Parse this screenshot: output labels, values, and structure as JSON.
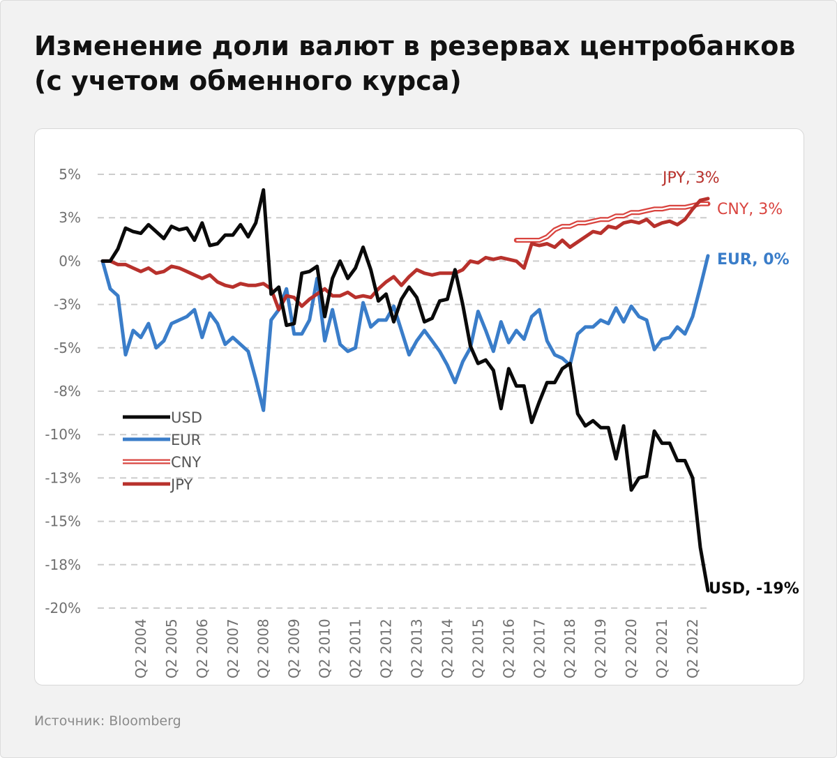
{
  "title_line1": "Изменение доли валют в резервах центробанков",
  "title_line2": "(с учетом обменного курса)",
  "source": "Источник: Bloomberg",
  "colors": {
    "usd": "#0a0a0a",
    "eur": "#3a7dc9",
    "cny": "#d9443f",
    "jpy": "#b8312c",
    "grid": "#cccccc",
    "axis_text": "#707070"
  },
  "chart_data": {
    "type": "line",
    "xlabel": "",
    "ylabel": "",
    "ylim": [
      -20,
      5
    ],
    "y_tick_labels": [
      "5%",
      "3%",
      "0%",
      "-3%",
      "-5%",
      "-8%",
      "-10%",
      "-13%",
      "-15%",
      "-18%",
      "-20%"
    ],
    "x_tick_labels": [
      "Q2 2004",
      "Q2 2005",
      "Q2 2006",
      "Q2 2007",
      "Q2 2008",
      "Q2 2009",
      "Q2 2010",
      "Q2 2011",
      "Q2 2012",
      "Q2 2013",
      "Q2 2014",
      "Q2 2015",
      "Q2 2016",
      "Q2 2017",
      "Q2 2018",
      "Q2 2019",
      "Q2 2020",
      "Q2 2021",
      "Q2 2022"
    ],
    "grid": "horizontal dashed",
    "legend_position": "left-middle",
    "series": [
      {
        "name": "USD",
        "end_label": "USD, -19%",
        "points": [
          [
            2003.0,
            0.0
          ],
          [
            2003.25,
            0.0
          ],
          [
            2003.5,
            0.7
          ],
          [
            2003.75,
            1.9
          ],
          [
            2004.0,
            1.7
          ],
          [
            2004.25,
            1.6
          ],
          [
            2004.5,
            2.1
          ],
          [
            2004.75,
            1.7
          ],
          [
            2005.0,
            1.3
          ],
          [
            2005.25,
            2.0
          ],
          [
            2005.5,
            1.8
          ],
          [
            2005.75,
            1.9
          ],
          [
            2006.0,
            1.2
          ],
          [
            2006.25,
            2.2
          ],
          [
            2006.5,
            0.9
          ],
          [
            2006.75,
            1.0
          ],
          [
            2007.0,
            1.5
          ],
          [
            2007.25,
            1.5
          ],
          [
            2007.5,
            2.1
          ],
          [
            2007.75,
            1.4
          ],
          [
            2008.0,
            2.2
          ],
          [
            2008.25,
            4.1
          ],
          [
            2008.5,
            -1.9
          ],
          [
            2008.75,
            -1.5
          ],
          [
            2009.0,
            -3.7
          ],
          [
            2009.25,
            -3.6
          ],
          [
            2009.5,
            -0.7
          ],
          [
            2009.75,
            -0.6
          ],
          [
            2010.0,
            -0.3
          ],
          [
            2010.25,
            -3.2
          ],
          [
            2010.5,
            -1.0
          ],
          [
            2010.75,
            0.0
          ],
          [
            2011.0,
            -1.0
          ],
          [
            2011.25,
            -0.4
          ],
          [
            2011.5,
            0.8
          ],
          [
            2011.75,
            -0.5
          ],
          [
            2012.0,
            -2.3
          ],
          [
            2012.25,
            -1.9
          ],
          [
            2012.5,
            -3.5
          ],
          [
            2012.75,
            -2.2
          ],
          [
            2013.0,
            -1.5
          ],
          [
            2013.25,
            -2.1
          ],
          [
            2013.5,
            -3.5
          ],
          [
            2013.75,
            -3.3
          ],
          [
            2014.0,
            -2.3
          ],
          [
            2014.25,
            -2.2
          ],
          [
            2014.5,
            -0.5
          ],
          [
            2014.75,
            -2.5
          ],
          [
            2015.0,
            -4.9
          ],
          [
            2015.25,
            -5.9
          ],
          [
            2015.5,
            -5.7
          ],
          [
            2015.75,
            -6.3
          ],
          [
            2016.0,
            -8.5
          ],
          [
            2016.25,
            -6.2
          ],
          [
            2016.5,
            -7.2
          ],
          [
            2016.75,
            -7.2
          ],
          [
            2017.0,
            -9.3
          ],
          [
            2017.25,
            -8.1
          ],
          [
            2017.5,
            -7.0
          ],
          [
            2017.75,
            -7.0
          ],
          [
            2018.0,
            -6.2
          ],
          [
            2018.25,
            -5.9
          ],
          [
            2018.5,
            -8.8
          ],
          [
            2018.75,
            -9.5
          ],
          [
            2019.0,
            -9.2
          ],
          [
            2019.25,
            -9.6
          ],
          [
            2019.5,
            -9.6
          ],
          [
            2019.75,
            -11.4
          ],
          [
            2020.0,
            -9.5
          ],
          [
            2020.25,
            -13.2
          ],
          [
            2020.5,
            -12.5
          ],
          [
            2020.75,
            -12.4
          ],
          [
            2021.0,
            -9.8
          ],
          [
            2021.25,
            -10.5
          ],
          [
            2021.5,
            -10.5
          ],
          [
            2021.75,
            -11.5
          ],
          [
            2022.0,
            -11.5
          ],
          [
            2022.25,
            -12.5
          ],
          [
            2022.5,
            -16.5
          ],
          [
            2022.75,
            -19.0
          ]
        ]
      },
      {
        "name": "EUR",
        "end_label": "EUR, 0%",
        "points": [
          [
            2003.0,
            0.0
          ],
          [
            2003.25,
            -1.6
          ],
          [
            2003.5,
            -2.0
          ],
          [
            2003.75,
            -5.4
          ],
          [
            2004.0,
            -4.0
          ],
          [
            2004.25,
            -4.4
          ],
          [
            2004.5,
            -3.6
          ],
          [
            2004.75,
            -5.0
          ],
          [
            2005.0,
            -4.6
          ],
          [
            2005.25,
            -3.6
          ],
          [
            2005.5,
            -3.4
          ],
          [
            2005.75,
            -3.2
          ],
          [
            2006.0,
            -2.8
          ],
          [
            2006.25,
            -4.4
          ],
          [
            2006.5,
            -3.0
          ],
          [
            2006.75,
            -3.6
          ],
          [
            2007.0,
            -4.8
          ],
          [
            2007.25,
            -4.4
          ],
          [
            2007.5,
            -4.8
          ],
          [
            2007.75,
            -5.2
          ],
          [
            2008.0,
            -6.8
          ],
          [
            2008.25,
            -8.6
          ],
          [
            2008.5,
            -3.4
          ],
          [
            2008.75,
            -2.8
          ],
          [
            2009.0,
            -1.6
          ],
          [
            2009.25,
            -4.2
          ],
          [
            2009.5,
            -4.2
          ],
          [
            2009.75,
            -3.4
          ],
          [
            2010.0,
            -1.0
          ],
          [
            2010.25,
            -4.6
          ],
          [
            2010.5,
            -2.8
          ],
          [
            2010.75,
            -4.8
          ],
          [
            2011.0,
            -5.2
          ],
          [
            2011.25,
            -5.0
          ],
          [
            2011.5,
            -2.4
          ],
          [
            2011.75,
            -3.8
          ],
          [
            2012.0,
            -3.4
          ],
          [
            2012.25,
            -3.4
          ],
          [
            2012.5,
            -2.6
          ],
          [
            2012.75,
            -4.0
          ],
          [
            2013.0,
            -5.4
          ],
          [
            2013.25,
            -4.6
          ],
          [
            2013.5,
            -4.0
          ],
          [
            2013.75,
            -4.6
          ],
          [
            2014.0,
            -5.2
          ],
          [
            2014.25,
            -6.0
          ],
          [
            2014.5,
            -7.0
          ],
          [
            2014.75,
            -5.8
          ],
          [
            2015.0,
            -5.0
          ],
          [
            2015.25,
            -2.9
          ],
          [
            2015.5,
            -4.0
          ],
          [
            2015.75,
            -5.2
          ],
          [
            2016.0,
            -3.5
          ],
          [
            2016.25,
            -4.7
          ],
          [
            2016.5,
            -4.0
          ],
          [
            2016.75,
            -4.5
          ],
          [
            2017.0,
            -3.2
          ],
          [
            2017.25,
            -2.8
          ],
          [
            2017.5,
            -4.6
          ],
          [
            2017.75,
            -5.4
          ],
          [
            2018.0,
            -5.6
          ],
          [
            2018.25,
            -6.0
          ],
          [
            2018.5,
            -4.2
          ],
          [
            2018.75,
            -3.8
          ],
          [
            2019.0,
            -3.8
          ],
          [
            2019.25,
            -3.4
          ],
          [
            2019.5,
            -3.6
          ],
          [
            2019.75,
            -2.7
          ],
          [
            2020.0,
            -3.5
          ],
          [
            2020.25,
            -2.6
          ],
          [
            2020.5,
            -3.2
          ],
          [
            2020.75,
            -3.4
          ],
          [
            2021.0,
            -5.1
          ],
          [
            2021.25,
            -4.5
          ],
          [
            2021.5,
            -4.4
          ],
          [
            2021.75,
            -3.8
          ],
          [
            2022.0,
            -4.2
          ],
          [
            2022.25,
            -3.2
          ],
          [
            2022.5,
            -1.5
          ],
          [
            2022.75,
            0.3
          ]
        ]
      },
      {
        "name": "CNY",
        "end_label": "CNY, 3%",
        "points": [
          [
            2016.5,
            1.2
          ],
          [
            2016.75,
            1.2
          ],
          [
            2017.0,
            1.2
          ],
          [
            2017.25,
            1.2
          ],
          [
            2017.5,
            1.4
          ],
          [
            2017.75,
            1.8
          ],
          [
            2018.0,
            2.0
          ],
          [
            2018.25,
            2.0
          ],
          [
            2018.5,
            2.2
          ],
          [
            2018.75,
            2.2
          ],
          [
            2019.0,
            2.3
          ],
          [
            2019.25,
            2.4
          ],
          [
            2019.5,
            2.4
          ],
          [
            2019.75,
            2.6
          ],
          [
            2020.0,
            2.6
          ],
          [
            2020.25,
            2.8
          ],
          [
            2020.5,
            2.8
          ],
          [
            2020.75,
            2.9
          ],
          [
            2021.0,
            3.0
          ],
          [
            2021.25,
            3.0
          ],
          [
            2021.5,
            3.1
          ],
          [
            2021.75,
            3.1
          ],
          [
            2022.0,
            3.1
          ],
          [
            2022.25,
            3.2
          ],
          [
            2022.5,
            3.3
          ],
          [
            2022.75,
            3.3
          ]
        ]
      },
      {
        "name": "JPY",
        "end_label": "JPY, 3%",
        "points": [
          [
            2003.0,
            0.0
          ],
          [
            2003.25,
            0.0
          ],
          [
            2003.5,
            -0.2
          ],
          [
            2003.75,
            -0.2
          ],
          [
            2004.0,
            -0.4
          ],
          [
            2004.25,
            -0.6
          ],
          [
            2004.5,
            -0.4
          ],
          [
            2004.75,
            -0.7
          ],
          [
            2005.0,
            -0.6
          ],
          [
            2005.25,
            -0.3
          ],
          [
            2005.5,
            -0.4
          ],
          [
            2005.75,
            -0.6
          ],
          [
            2006.0,
            -0.8
          ],
          [
            2006.25,
            -1.0
          ],
          [
            2006.5,
            -0.8
          ],
          [
            2006.75,
            -1.2
          ],
          [
            2007.0,
            -1.4
          ],
          [
            2007.25,
            -1.5
          ],
          [
            2007.5,
            -1.3
          ],
          [
            2007.75,
            -1.4
          ],
          [
            2008.0,
            -1.4
          ],
          [
            2008.25,
            -1.3
          ],
          [
            2008.5,
            -1.6
          ],
          [
            2008.75,
            -2.8
          ],
          [
            2009.0,
            -2.0
          ],
          [
            2009.25,
            -2.1
          ],
          [
            2009.5,
            -2.6
          ],
          [
            2009.75,
            -2.2
          ],
          [
            2010.0,
            -1.9
          ],
          [
            2010.25,
            -1.6
          ],
          [
            2010.5,
            -2.0
          ],
          [
            2010.75,
            -2.0
          ],
          [
            2011.0,
            -1.8
          ],
          [
            2011.25,
            -2.1
          ],
          [
            2011.5,
            -2.0
          ],
          [
            2011.75,
            -2.1
          ],
          [
            2012.0,
            -1.6
          ],
          [
            2012.25,
            -1.2
          ],
          [
            2012.5,
            -0.9
          ],
          [
            2012.75,
            -1.4
          ],
          [
            2013.0,
            -0.9
          ],
          [
            2013.25,
            -0.5
          ],
          [
            2013.5,
            -0.7
          ],
          [
            2013.75,
            -0.8
          ],
          [
            2014.0,
            -0.7
          ],
          [
            2014.25,
            -0.7
          ],
          [
            2014.5,
            -0.7
          ],
          [
            2014.75,
            -0.5
          ],
          [
            2015.0,
            0.0
          ],
          [
            2015.25,
            -0.1
          ],
          [
            2015.5,
            0.2
          ],
          [
            2015.75,
            0.1
          ],
          [
            2016.0,
            0.2
          ],
          [
            2016.25,
            0.1
          ],
          [
            2016.5,
            0.0
          ],
          [
            2016.75,
            -0.4
          ],
          [
            2017.0,
            1.0
          ],
          [
            2017.25,
            0.9
          ],
          [
            2017.5,
            1.0
          ],
          [
            2017.75,
            0.8
          ],
          [
            2018.0,
            1.2
          ],
          [
            2018.25,
            0.8
          ],
          [
            2018.5,
            1.1
          ],
          [
            2018.75,
            1.4
          ],
          [
            2019.0,
            1.7
          ],
          [
            2019.25,
            1.6
          ],
          [
            2019.5,
            2.0
          ],
          [
            2019.75,
            1.9
          ],
          [
            2020.0,
            2.2
          ],
          [
            2020.25,
            2.3
          ],
          [
            2020.5,
            2.2
          ],
          [
            2020.75,
            2.4
          ],
          [
            2021.0,
            2.0
          ],
          [
            2021.25,
            2.2
          ],
          [
            2021.5,
            2.3
          ],
          [
            2021.75,
            2.1
          ],
          [
            2022.0,
            2.4
          ],
          [
            2022.25,
            3.0
          ],
          [
            2022.5,
            3.5
          ],
          [
            2022.75,
            3.6
          ]
        ]
      }
    ]
  }
}
